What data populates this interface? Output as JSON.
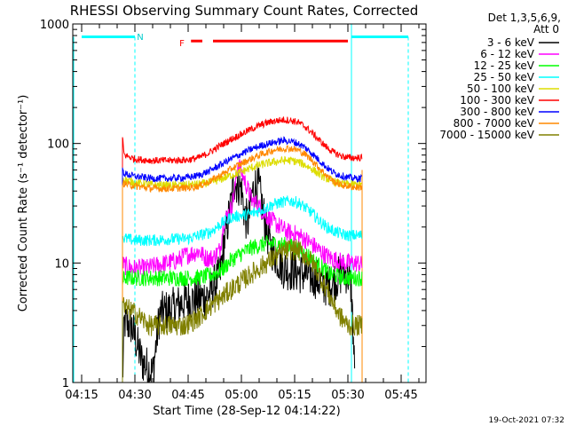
{
  "chart_data": {
    "type": "line",
    "title": "RHESSI Observing Summary Count Rates, Corrected",
    "xlabel": "Start Time (28-Sep-12 04:14:22)",
    "ylabel": "Corrected Count Rate (s⁻¹ detector⁻¹)",
    "yscale": "log",
    "ylim": [
      1,
      1000
    ],
    "xlim_minutes": [
      0,
      97.5
    ],
    "x_ticks": [
      {
        "label": "04:15",
        "minute": 0
      },
      {
        "label": "04:30",
        "minute": 15
      },
      {
        "label": "04:45",
        "minute": 30
      },
      {
        "label": "05:00",
        "minute": 45
      },
      {
        "label": "05:15",
        "minute": 60
      },
      {
        "label": "05:30",
        "minute": 75
      },
      {
        "label": "05:45",
        "minute": 90
      }
    ],
    "y_ticks": [
      {
        "label": "1",
        "value": 1
      },
      {
        "label": "10",
        "value": 10
      },
      {
        "label": "100",
        "value": 100
      },
      {
        "label": "1000",
        "value": 1000
      }
    ],
    "legend_header": [
      "Det 1,3,5,6,9,",
      "Att 0"
    ],
    "series": [
      {
        "name": "3 - 6 keV",
        "color": "#000000",
        "points": [
          [
            11.5,
            1.0
          ],
          [
            12,
            3.2
          ],
          [
            14,
            3.0
          ],
          [
            17,
            1.5
          ],
          [
            20,
            1.2
          ],
          [
            22,
            3.8
          ],
          [
            26,
            4.2
          ],
          [
            29,
            4.8
          ],
          [
            33,
            5.0
          ],
          [
            36,
            5.5
          ],
          [
            39,
            8.0
          ],
          [
            40,
            14.0
          ],
          [
            42,
            30.0
          ],
          [
            43,
            48.0
          ],
          [
            45,
            42.0
          ],
          [
            46,
            24.0
          ],
          [
            47,
            22.0
          ],
          [
            48,
            38.0
          ],
          [
            49,
            45.0
          ],
          [
            50,
            42.0
          ],
          [
            51,
            28.0
          ],
          [
            53,
            14.0
          ],
          [
            55,
            11.0
          ],
          [
            57,
            9.0
          ],
          [
            60,
            8.5
          ],
          [
            63,
            8.0
          ],
          [
            66,
            7.5
          ],
          [
            68,
            6.5
          ],
          [
            70,
            6.5
          ],
          [
            72,
            7.5
          ],
          [
            74,
            8.5
          ],
          [
            75,
            8.0
          ],
          [
            76,
            6.0
          ],
          [
            77,
            1.0
          ]
        ]
      },
      {
        "name": "6 - 12 keV",
        "color": "#ff00ff",
        "points": [
          [
            11.5,
            10.0
          ],
          [
            12,
            9.5
          ],
          [
            15,
            9.0
          ],
          [
            18,
            9.0
          ],
          [
            21,
            9.5
          ],
          [
            24,
            10.0
          ],
          [
            27,
            10.5
          ],
          [
            29,
            11.5
          ],
          [
            31,
            12.0
          ],
          [
            33,
            12.5
          ],
          [
            35,
            11.0
          ],
          [
            37,
            11.0
          ],
          [
            39,
            13.0
          ],
          [
            40,
            22.0
          ],
          [
            42,
            28.0
          ],
          [
            43,
            38.0
          ],
          [
            44,
            70.0
          ],
          [
            45,
            58.0
          ],
          [
            46,
            48.0
          ],
          [
            47,
            40.0
          ],
          [
            48,
            33.0
          ],
          [
            49,
            32.0
          ],
          [
            50,
            30.0
          ],
          [
            51,
            27.0
          ],
          [
            52,
            25.0
          ],
          [
            54,
            22.0
          ],
          [
            56,
            20.0
          ],
          [
            58,
            18.0
          ],
          [
            60,
            17.5
          ],
          [
            62,
            16.5
          ],
          [
            64,
            15.0
          ],
          [
            66,
            13.5
          ],
          [
            68,
            12.0
          ],
          [
            70,
            11.0
          ],
          [
            72,
            10.5
          ],
          [
            74,
            10.0
          ],
          [
            76,
            10.0
          ],
          [
            78,
            10.0
          ],
          [
            79,
            9.5
          ]
        ]
      },
      {
        "name": "12 - 25 keV",
        "color": "#00ff00",
        "points": [
          [
            11.5,
            7.0
          ],
          [
            12,
            7.5
          ],
          [
            15,
            7.5
          ],
          [
            20,
            7.5
          ],
          [
            25,
            7.5
          ],
          [
            30,
            7.5
          ],
          [
            34,
            7.6
          ],
          [
            37,
            8.0
          ],
          [
            40,
            9.0
          ],
          [
            42,
            10.5
          ],
          [
            44,
            11.5
          ],
          [
            46,
            12.5
          ],
          [
            48,
            13.5
          ],
          [
            50,
            14.0
          ],
          [
            52,
            14.5
          ],
          [
            55,
            14.5
          ],
          [
            58,
            14.0
          ],
          [
            60,
            13.5
          ],
          [
            62,
            12.5
          ],
          [
            64,
            11.5
          ],
          [
            66,
            10.0
          ],
          [
            68,
            9.0
          ],
          [
            70,
            8.0
          ],
          [
            72,
            7.8
          ],
          [
            74,
            7.5
          ],
          [
            76,
            7.5
          ],
          [
            79,
            7.5
          ]
        ]
      },
      {
        "name": "25 - 50 keV",
        "color": "#00ffff",
        "points": [
          [
            11.5,
            17.0
          ],
          [
            12,
            16.0
          ],
          [
            15,
            15.5
          ],
          [
            20,
            15.5
          ],
          [
            25,
            15.8
          ],
          [
            30,
            16.0
          ],
          [
            33,
            17.0
          ],
          [
            36,
            18.0
          ],
          [
            39,
            21.0
          ],
          [
            42,
            24.0
          ],
          [
            45,
            25.0
          ],
          [
            48,
            26.0
          ],
          [
            51,
            28.0
          ],
          [
            54,
            31.0
          ],
          [
            57,
            32.5
          ],
          [
            59,
            33.0
          ],
          [
            61,
            32.0
          ],
          [
            63,
            29.0
          ],
          [
            65,
            26.0
          ],
          [
            67,
            22.5
          ],
          [
            69,
            20.0
          ],
          [
            71,
            18.5
          ],
          [
            73,
            17.5
          ],
          [
            75,
            17.0
          ],
          [
            77,
            17.0
          ],
          [
            79,
            17.0
          ]
        ]
      },
      {
        "name": "50 - 100 keV",
        "color": "#dddd00",
        "points": [
          [
            11.5,
            52.0
          ],
          [
            12,
            50.0
          ],
          [
            15,
            47.0
          ],
          [
            20,
            45.0
          ],
          [
            25,
            44.5
          ],
          [
            30,
            45.0
          ],
          [
            33,
            45.5
          ],
          [
            36,
            47.0
          ],
          [
            39,
            50.0
          ],
          [
            42,
            54.0
          ],
          [
            45,
            58.0
          ],
          [
            48,
            63.0
          ],
          [
            51,
            67.0
          ],
          [
            54,
            70.0
          ],
          [
            57,
            72.0
          ],
          [
            59,
            72.0
          ],
          [
            61,
            70.0
          ],
          [
            63,
            66.0
          ],
          [
            65,
            61.0
          ],
          [
            67,
            55.0
          ],
          [
            69,
            51.0
          ],
          [
            71,
            48.0
          ],
          [
            73,
            46.0
          ],
          [
            75,
            45.5
          ],
          [
            77,
            45.5
          ],
          [
            79,
            45.5
          ]
        ]
      },
      {
        "name": "100 - 300 keV",
        "color": "#ff0000",
        "points": [
          [
            11.5,
            110.0
          ],
          [
            12,
            80.0
          ],
          [
            15,
            74.0
          ],
          [
            20,
            72.0
          ],
          [
            25,
            72.0
          ],
          [
            30,
            73.0
          ],
          [
            33,
            76.0
          ],
          [
            36,
            84.0
          ],
          [
            39,
            96.0
          ],
          [
            42,
            108.0
          ],
          [
            45,
            120.0
          ],
          [
            48,
            133.0
          ],
          [
            51,
            145.0
          ],
          [
            54,
            154.0
          ],
          [
            57,
            158.0
          ],
          [
            59,
            156.0
          ],
          [
            61,
            150.0
          ],
          [
            63,
            138.0
          ],
          [
            65,
            122.0
          ],
          [
            67,
            106.0
          ],
          [
            69,
            93.0
          ],
          [
            71,
            84.0
          ],
          [
            73,
            79.0
          ],
          [
            75,
            76.0
          ],
          [
            77,
            76.0
          ],
          [
            79,
            76.0
          ]
        ]
      },
      {
        "name": "300 - 800 keV",
        "color": "#0000ff",
        "points": [
          [
            11.5,
            60.0
          ],
          [
            12,
            56.0
          ],
          [
            15,
            53.0
          ],
          [
            20,
            51.0
          ],
          [
            25,
            51.0
          ],
          [
            30,
            52.0
          ],
          [
            33,
            54.0
          ],
          [
            36,
            59.0
          ],
          [
            39,
            66.0
          ],
          [
            42,
            74.0
          ],
          [
            45,
            82.0
          ],
          [
            48,
            90.0
          ],
          [
            51,
            97.0
          ],
          [
            54,
            102.0
          ],
          [
            57,
            106.0
          ],
          [
            59,
            104.0
          ],
          [
            61,
            100.0
          ],
          [
            63,
            92.0
          ],
          [
            65,
            82.0
          ],
          [
            67,
            72.0
          ],
          [
            69,
            63.0
          ],
          [
            71,
            57.0
          ],
          [
            73,
            54.0
          ],
          [
            75,
            52.0
          ],
          [
            77,
            51.0
          ],
          [
            79,
            51.0
          ]
        ]
      },
      {
        "name": "800 - 7000 keV",
        "color": "#ff8800",
        "points": [
          [
            11.5,
            47.0
          ],
          [
            12,
            46.0
          ],
          [
            15,
            44.0
          ],
          [
            20,
            42.0
          ],
          [
            25,
            42.0
          ],
          [
            30,
            42.5
          ],
          [
            33,
            44.0
          ],
          [
            36,
            48.0
          ],
          [
            39,
            54.0
          ],
          [
            42,
            61.0
          ],
          [
            45,
            68.0
          ],
          [
            48,
            75.0
          ],
          [
            51,
            82.0
          ],
          [
            54,
            88.0
          ],
          [
            57,
            91.0
          ],
          [
            59,
            91.0
          ],
          [
            61,
            88.0
          ],
          [
            63,
            81.0
          ],
          [
            65,
            72.0
          ],
          [
            67,
            62.0
          ],
          [
            69,
            54.0
          ],
          [
            71,
            48.0
          ],
          [
            73,
            45.0
          ],
          [
            75,
            44.0
          ],
          [
            77,
            43.0
          ],
          [
            79,
            43.0
          ]
        ]
      },
      {
        "name": "7000 - 15000 keV",
        "color": "#808000",
        "points": [
          [
            11.5,
            5.0
          ],
          [
            12,
            4.2
          ],
          [
            14,
            4.0
          ],
          [
            16,
            3.6
          ],
          [
            19,
            3.0
          ],
          [
            24,
            3.0
          ],
          [
            29,
            3.0
          ],
          [
            33,
            3.5
          ],
          [
            35,
            4.0
          ],
          [
            37,
            4.5
          ],
          [
            39,
            5.0
          ],
          [
            42,
            6.0
          ],
          [
            45,
            7.0
          ],
          [
            48,
            8.2
          ],
          [
            51,
            9.5
          ],
          [
            54,
            11.0
          ],
          [
            57,
            12.5
          ],
          [
            59,
            13.0
          ],
          [
            61,
            12.8
          ],
          [
            63,
            11.5
          ],
          [
            65,
            10.0
          ],
          [
            67,
            8.0
          ],
          [
            69,
            6.0
          ],
          [
            71,
            4.5
          ],
          [
            73,
            3.5
          ],
          [
            75,
            3.0
          ],
          [
            77,
            3.0
          ],
          [
            79,
            3.0
          ]
        ]
      }
    ],
    "annotations": {
      "night_label": "N",
      "flare_label": "F",
      "night_intervals": [
        [
          0,
          15
        ],
        [
          76,
          92
        ]
      ],
      "flare_intervals": [
        [
          30.8,
          34
        ],
        [
          37,
          75
        ]
      ],
      "night_level": 780,
      "flare_level": 720,
      "attenuator_lines": [
        11.5,
        79
      ],
      "night_dashed_lines": [
        15,
        92
      ]
    },
    "timestamp": "19-Oct-2021 07:32"
  },
  "colors": {
    "title": "#000000",
    "night": "#00ffff",
    "flare": "#ff0000",
    "attenuator": "#ff8800"
  }
}
